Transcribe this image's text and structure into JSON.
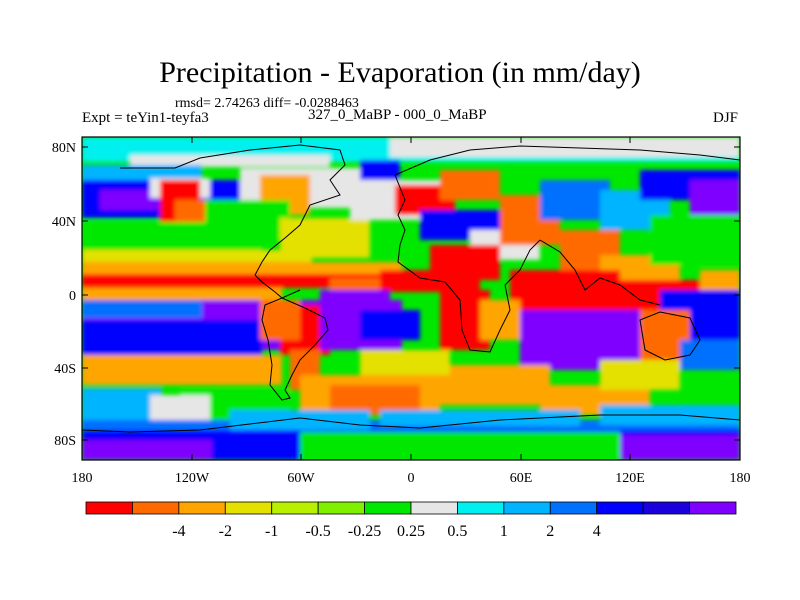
{
  "figure": {
    "title": "Precipitation - Evaporation (in mm/day)",
    "subtitle": "rmsd= 2.74263 diff= -0.0288463",
    "left_label": "Expt = teYin1-teyfa3",
    "center_label": "327_0_MaBP - 000_0_MaBP",
    "right_label": "DJF"
  },
  "axes": {
    "lat_ticks": [
      "80N",
      "40N",
      "0",
      "40S",
      "80S"
    ],
    "lon_ticks": [
      "180",
      "120W",
      "60W",
      "0",
      "60E",
      "120E",
      "180"
    ]
  },
  "colorbar": {
    "colors": [
      "#ff0000",
      "#ff6a00",
      "#ffa500",
      "#e4e000",
      "#b8f000",
      "#7ff000",
      "#00e800",
      "#e6e6e6",
      "#00f0f0",
      "#00b4ff",
      "#0070ff",
      "#0000ff",
      "#1a00dd",
      "#7f00ff"
    ],
    "labels": [
      "-4",
      "-2",
      "-1",
      "-0.5",
      "-0.25",
      "0.25",
      "0.5",
      "1",
      "2",
      "4"
    ]
  }
}
